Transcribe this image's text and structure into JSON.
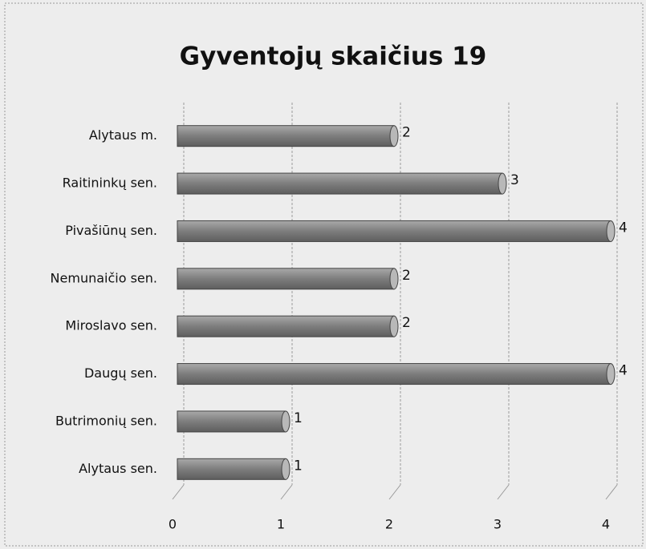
{
  "chart_data": {
    "type": "bar",
    "orientation": "horizontal",
    "title": "Gyventojų skaičius 19",
    "categories": [
      "Alytaus m.",
      "Raitininkų sen.",
      "Pivašiūnų sen.",
      "Nemunaičio sen.",
      "Miroslavo sen.",
      "Daugų sen.",
      "Butrimonių sen.",
      "Alytaus sen."
    ],
    "values": [
      2,
      3,
      4,
      2,
      2,
      4,
      1,
      1
    ],
    "color": "#858585",
    "xlim": [
      0,
      4
    ],
    "xticks": [
      0,
      1,
      2,
      3,
      4
    ],
    "grid": true
  }
}
